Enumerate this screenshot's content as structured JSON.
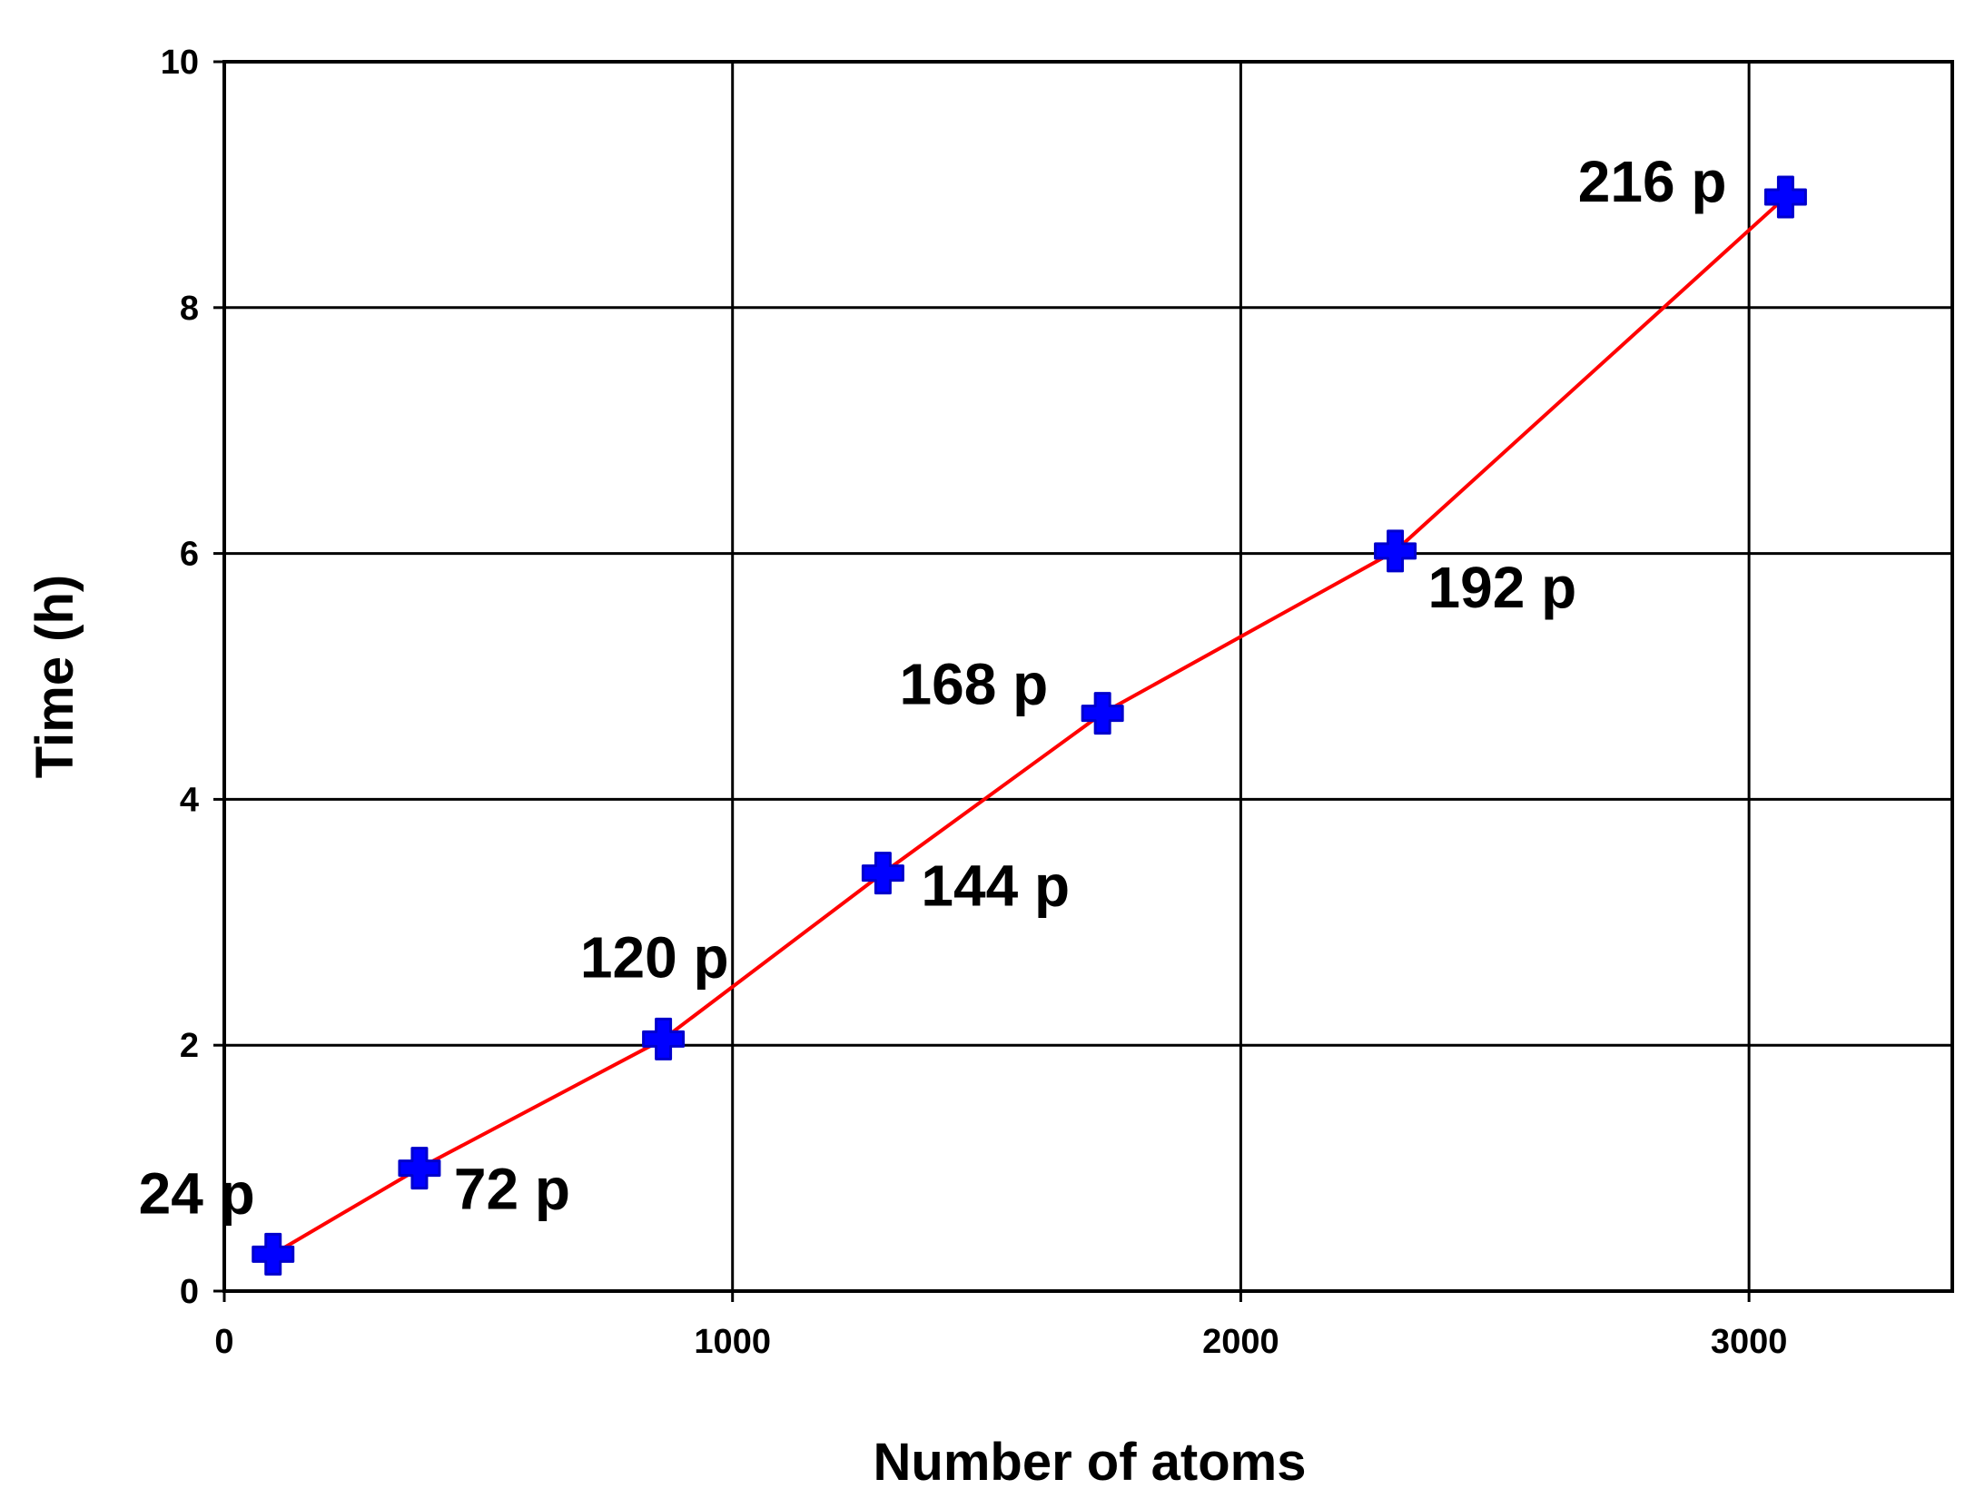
{
  "chart_data": {
    "type": "line",
    "xlabel": "Number of atoms",
    "ylabel": "Time (h)",
    "xlim": [
      0,
      3400
    ],
    "ylim": [
      0,
      10
    ],
    "x_ticks": [
      0,
      1000,
      2000,
      3000
    ],
    "y_ticks": [
      0,
      2,
      4,
      6,
      8,
      10
    ],
    "grid": true,
    "series": [
      {
        "x": [
          96,
          384,
          864,
          1296,
          1728,
          2304,
          3072
        ],
        "y": [
          0.3,
          1.0,
          2.05,
          3.4,
          4.7,
          6.02,
          8.9
        ],
        "point_labels": [
          "24 p",
          "72 p",
          "120 p",
          "144 p",
          "168 p",
          "192 p",
          "216 p"
        ],
        "line_color": "#ff0000",
        "marker_color": "#0000ff"
      }
    ]
  }
}
